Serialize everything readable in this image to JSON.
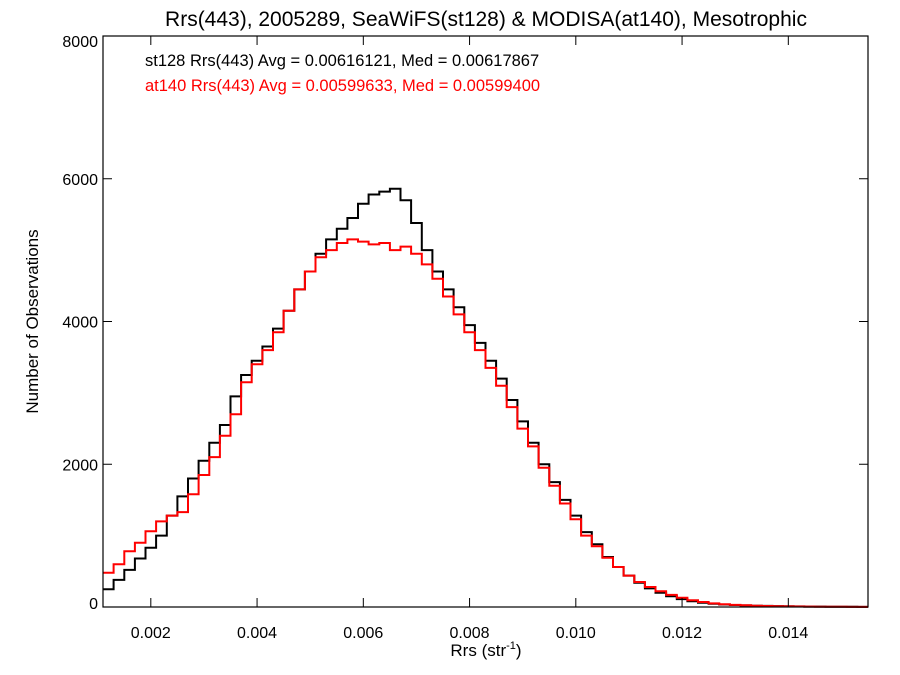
{
  "chart_data": {
    "type": "line",
    "step": true,
    "title": "Rrs(443), 2005289, SeaWiFS(st128) & MODISA(at140), Mesotrophic",
    "xlabel_main": "Rrs (str",
    "xlabel_sup": "-1",
    "xlabel_close": ")",
    "ylabel": "Number of Observations",
    "xlim": [
      0.0011,
      0.0155
    ],
    "ylim": [
      0,
      8000
    ],
    "xticks": [
      {
        "value": 0.002,
        "label": "0.002"
      },
      {
        "value": 0.004,
        "label": "0.004"
      },
      {
        "value": 0.006,
        "label": "0.006"
      },
      {
        "value": 0.008,
        "label": "0.008"
      },
      {
        "value": 0.01,
        "label": "0.010"
      },
      {
        "value": 0.012,
        "label": "0.012"
      },
      {
        "value": 0.014,
        "label": "0.014"
      }
    ],
    "yticks": [
      {
        "value": 0,
        "label": "0"
      },
      {
        "value": 2000,
        "label": "2000"
      },
      {
        "value": 4000,
        "label": "4000"
      },
      {
        "value": 6000,
        "label": "6000"
      },
      {
        "value": 8000,
        "label": "8000"
      }
    ],
    "grid": false,
    "annotations": [
      {
        "text": "st128 Rrs(443) Avg = 0.00616121, Med = 0.00617867",
        "color": "#000000"
      },
      {
        "text": "at140 Rrs(443) Avg = 0.00599633, Med = 0.00599400",
        "color": "#ff0000"
      }
    ],
    "series": [
      {
        "color": "#000000",
        "x": [
          0.0011,
          0.0013,
          0.0015,
          0.0017,
          0.0019,
          0.0021,
          0.0023,
          0.0025,
          0.0027,
          0.0029,
          0.0031,
          0.0033,
          0.0035,
          0.0037,
          0.0039,
          0.0041,
          0.0043,
          0.0045,
          0.0047,
          0.0049,
          0.0051,
          0.0053,
          0.0055,
          0.0057,
          0.0059,
          0.0061,
          0.0063,
          0.0065,
          0.0067,
          0.0069,
          0.0071,
          0.0073,
          0.0075,
          0.0077,
          0.0079,
          0.0081,
          0.0083,
          0.0085,
          0.0087,
          0.0089,
          0.0091,
          0.0093,
          0.0095,
          0.0097,
          0.0099,
          0.0101,
          0.0103,
          0.0105,
          0.0107,
          0.0109,
          0.0111,
          0.0113,
          0.0115,
          0.0117,
          0.0119,
          0.0121,
          0.0123,
          0.0125,
          0.0127,
          0.0129,
          0.0131,
          0.0133,
          0.0135,
          0.0137,
          0.0139,
          0.0141,
          0.0143,
          0.0145,
          0.0147,
          0.0149,
          0.0151,
          0.0153,
          0.0155
        ],
        "values": [
          250,
          380,
          520,
          680,
          830,
          1000,
          1280,
          1550,
          1800,
          2050,
          2300,
          2550,
          2950,
          3250,
          3450,
          3650,
          3900,
          4150,
          4450,
          4700,
          4950,
          5150,
          5300,
          5450,
          5650,
          5780,
          5820,
          5860,
          5700,
          5380,
          5000,
          4700,
          4450,
          4200,
          3950,
          3700,
          3450,
          3200,
          2900,
          2600,
          2300,
          2000,
          1750,
          1500,
          1280,
          1050,
          880,
          700,
          560,
          440,
          340,
          260,
          200,
          150,
          110,
          80,
          60,
          45,
          35,
          28,
          22,
          18,
          15,
          12,
          10,
          8,
          6,
          5,
          4,
          3,
          3,
          2,
          2
        ]
      },
      {
        "color": "#ff0000",
        "x": [
          0.0011,
          0.0013,
          0.0015,
          0.0017,
          0.0019,
          0.0021,
          0.0023,
          0.0025,
          0.0027,
          0.0029,
          0.0031,
          0.0033,
          0.0035,
          0.0037,
          0.0039,
          0.0041,
          0.0043,
          0.0045,
          0.0047,
          0.0049,
          0.0051,
          0.0053,
          0.0055,
          0.0057,
          0.0059,
          0.0061,
          0.0063,
          0.0065,
          0.0067,
          0.0069,
          0.0071,
          0.0073,
          0.0075,
          0.0077,
          0.0079,
          0.0081,
          0.0083,
          0.0085,
          0.0087,
          0.0089,
          0.0091,
          0.0093,
          0.0095,
          0.0097,
          0.0099,
          0.0101,
          0.0103,
          0.0105,
          0.0107,
          0.0109,
          0.0111,
          0.0113,
          0.0115,
          0.0117,
          0.0119,
          0.0121,
          0.0123,
          0.0125,
          0.0127,
          0.0129,
          0.0131,
          0.0133,
          0.0135,
          0.0137,
          0.0139,
          0.0141,
          0.0143,
          0.0145,
          0.0147,
          0.0149,
          0.0151,
          0.0153,
          0.0155
        ],
        "values": [
          480,
          600,
          780,
          900,
          1060,
          1200,
          1280,
          1330,
          1580,
          1850,
          2100,
          2400,
          2700,
          3150,
          3400,
          3600,
          3850,
          4150,
          4450,
          4700,
          4900,
          5000,
          5100,
          5150,
          5120,
          5080,
          5100,
          5000,
          5050,
          4950,
          4800,
          4600,
          4350,
          4100,
          3850,
          3600,
          3350,
          3100,
          2800,
          2500,
          2250,
          1950,
          1700,
          1450,
          1230,
          1000,
          850,
          690,
          560,
          440,
          350,
          280,
          220,
          170,
          130,
          95,
          70,
          50,
          38,
          30,
          24,
          18,
          14,
          11,
          9,
          7,
          5,
          4,
          3,
          3,
          2,
          2,
          2
        ]
      }
    ]
  }
}
